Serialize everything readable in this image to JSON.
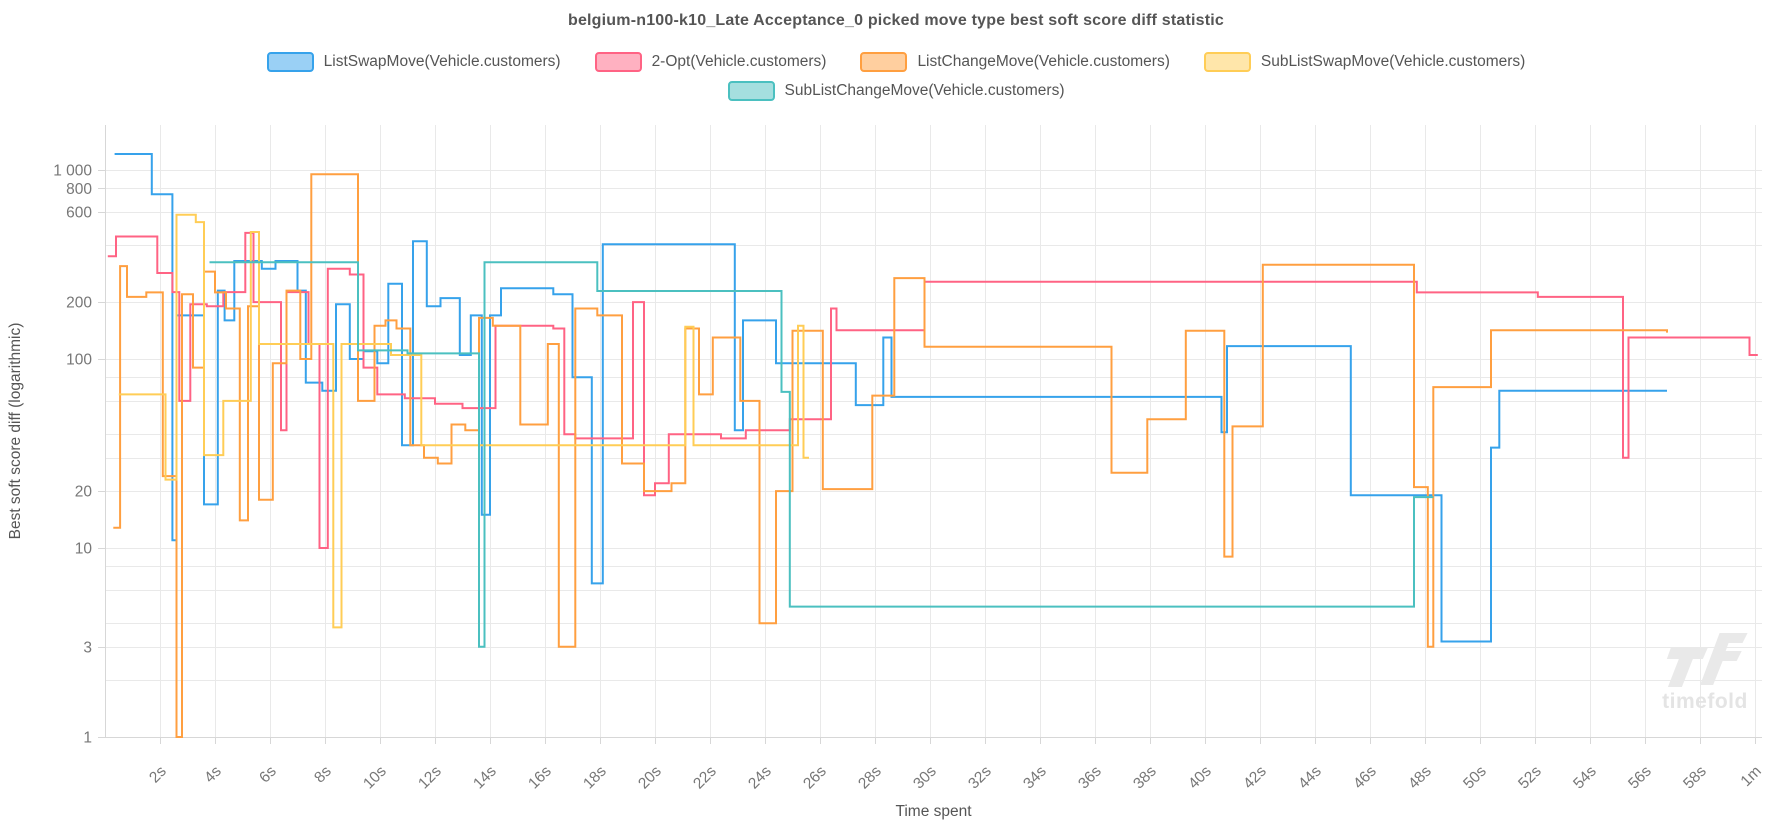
{
  "title": "belgium-n100-k10_Late Acceptance_0 picked move type best soft score diff statistic",
  "axes": {
    "y_label": "Best soft score diff (logarithmic)",
    "x_label": "Time spent",
    "y_tick_labels": [
      {
        "label": "1 000",
        "value": 1000
      },
      {
        "label": "800",
        "value": 800
      },
      {
        "label": "600",
        "value": 600
      },
      {
        "label": "200",
        "value": 200
      },
      {
        "label": "100",
        "value": 100
      },
      {
        "label": "20",
        "value": 20
      },
      {
        "label": "10",
        "value": 10
      },
      {
        "label": "3",
        "value": 3
      },
      {
        "label": "1",
        "value": 1
      }
    ],
    "y_gridlines": [
      1,
      2,
      3,
      4,
      6,
      8,
      10,
      20,
      30,
      40,
      60,
      80,
      100,
      200,
      400,
      600,
      800,
      1000
    ],
    "x_ticks": [
      {
        "label": "2s",
        "value": 2
      },
      {
        "label": "4s",
        "value": 4
      },
      {
        "label": "6s",
        "value": 6
      },
      {
        "label": "8s",
        "value": 8
      },
      {
        "label": "10s",
        "value": 10
      },
      {
        "label": "12s",
        "value": 12
      },
      {
        "label": "14s",
        "value": 14
      },
      {
        "label": "16s",
        "value": 16
      },
      {
        "label": "18s",
        "value": 18
      },
      {
        "label": "20s",
        "value": 20
      },
      {
        "label": "22s",
        "value": 22
      },
      {
        "label": "24s",
        "value": 24
      },
      {
        "label": "26s",
        "value": 26
      },
      {
        "label": "28s",
        "value": 28
      },
      {
        "label": "30s",
        "value": 30
      },
      {
        "label": "32s",
        "value": 32
      },
      {
        "label": "34s",
        "value": 34
      },
      {
        "label": "36s",
        "value": 36
      },
      {
        "label": "38s",
        "value": 38
      },
      {
        "label": "40s",
        "value": 40
      },
      {
        "label": "42s",
        "value": 42
      },
      {
        "label": "44s",
        "value": 44
      },
      {
        "label": "46s",
        "value": 46
      },
      {
        "label": "48s",
        "value": 48
      },
      {
        "label": "50s",
        "value": 50
      },
      {
        "label": "52s",
        "value": 52
      },
      {
        "label": "54s",
        "value": 54
      },
      {
        "label": "56s",
        "value": 56
      },
      {
        "label": "58s",
        "value": 58
      },
      {
        "label": "1m",
        "value": 60
      }
    ]
  },
  "watermark": {
    "logo": "tf",
    "text": "timefold"
  },
  "chart_data": {
    "type": "line",
    "stepped": true,
    "x_axis_unit": "seconds",
    "y_scale": "logarithmic",
    "y_range": [
      1,
      1750
    ],
    "x_range": [
      0,
      60.6
    ],
    "grid": true,
    "legend_position": "top",
    "title": "belgium-n100-k10_Late Acceptance_0 picked move type best soft score diff statistic",
    "series": [
      {
        "name": "ListSwapMove(Vehicle.customers)",
        "color": "#36A2EB",
        "points": [
          [
            0.35,
            1215
          ],
          [
            1.7,
            744
          ],
          [
            2.45,
            11
          ],
          [
            2.6,
            170
          ],
          [
            3.6,
            17
          ],
          [
            4.1,
            230
          ],
          [
            4.35,
            160
          ],
          [
            4.7,
            330
          ],
          [
            5.7,
            300
          ],
          [
            6.2,
            330
          ],
          [
            7.0,
            230
          ],
          [
            7.3,
            75
          ],
          [
            7.9,
            68
          ],
          [
            8.4,
            195
          ],
          [
            8.9,
            100
          ],
          [
            9.4,
            110
          ],
          [
            9.9,
            95
          ],
          [
            10.3,
            250
          ],
          [
            10.8,
            35
          ],
          [
            11.2,
            420
          ],
          [
            11.7,
            190
          ],
          [
            12.2,
            210
          ],
          [
            12.9,
            105
          ],
          [
            13.3,
            170
          ],
          [
            13.7,
            15
          ],
          [
            14.0,
            170
          ],
          [
            14.4,
            237
          ],
          [
            16.3,
            220
          ],
          [
            17.0,
            80
          ],
          [
            17.7,
            6.5
          ],
          [
            18.1,
            405
          ],
          [
            22.9,
            42
          ],
          [
            23.2,
            160
          ],
          [
            24.4,
            95
          ],
          [
            27.3,
            57
          ],
          [
            28.3,
            130
          ],
          [
            28.6,
            63
          ],
          [
            40.6,
            41
          ],
          [
            40.8,
            117
          ],
          [
            45.3,
            19
          ],
          [
            48.6,
            3.2
          ],
          [
            50.4,
            34
          ],
          [
            50.7,
            68
          ],
          [
            56.8,
            68
          ]
        ]
      },
      {
        "name": "2-Opt(Vehicle.customers)",
        "color": "#FF6384",
        "points": [
          [
            0.1,
            350
          ],
          [
            0.4,
            445
          ],
          [
            1.9,
            285
          ],
          [
            2.45,
            226
          ],
          [
            2.7,
            60
          ],
          [
            3.1,
            195
          ],
          [
            3.7,
            190
          ],
          [
            4.3,
            226
          ],
          [
            5.1,
            465
          ],
          [
            5.4,
            200
          ],
          [
            6.4,
            42
          ],
          [
            6.6,
            226
          ],
          [
            7.4,
            120
          ],
          [
            7.8,
            10
          ],
          [
            8.1,
            300
          ],
          [
            8.9,
            280
          ],
          [
            9.4,
            90
          ],
          [
            9.9,
            65
          ],
          [
            10.9,
            62
          ],
          [
            12.0,
            58
          ],
          [
            13.0,
            55
          ],
          [
            14.2,
            150
          ],
          [
            16.3,
            145
          ],
          [
            16.7,
            40
          ],
          [
            17.1,
            38
          ],
          [
            19.2,
            200
          ],
          [
            19.6,
            19
          ],
          [
            20.0,
            22
          ],
          [
            20.5,
            40
          ],
          [
            22.4,
            38
          ],
          [
            23.3,
            42
          ],
          [
            24.9,
            48
          ],
          [
            26.4,
            185
          ],
          [
            26.6,
            142
          ],
          [
            29.8,
            256
          ],
          [
            47.7,
            225
          ],
          [
            52.1,
            213
          ],
          [
            55.2,
            30
          ],
          [
            55.4,
            130
          ],
          [
            59.8,
            105
          ],
          [
            60.1,
            105
          ]
        ]
      },
      {
        "name": "ListChangeMove(Vehicle.customers)",
        "color": "#FF9F40",
        "points": [
          [
            0.3,
            12.8
          ],
          [
            0.55,
            310
          ],
          [
            0.8,
            213
          ],
          [
            1.5,
            225
          ],
          [
            2.1,
            24
          ],
          [
            2.6,
            1
          ],
          [
            2.8,
            220
          ],
          [
            3.2,
            90
          ],
          [
            3.6,
            290
          ],
          [
            4.0,
            225
          ],
          [
            4.4,
            185
          ],
          [
            4.9,
            14
          ],
          [
            5.2,
            190
          ],
          [
            5.6,
            18
          ],
          [
            6.1,
            95
          ],
          [
            6.6,
            230
          ],
          [
            7.1,
            100
          ],
          [
            7.5,
            950
          ],
          [
            9.2,
            60
          ],
          [
            9.8,
            150
          ],
          [
            10.2,
            160
          ],
          [
            10.6,
            145
          ],
          [
            11.1,
            35
          ],
          [
            11.6,
            30
          ],
          [
            12.1,
            28
          ],
          [
            12.6,
            45
          ],
          [
            13.1,
            42
          ],
          [
            13.6,
            165
          ],
          [
            14.1,
            150
          ],
          [
            15.1,
            45
          ],
          [
            16.1,
            120
          ],
          [
            16.5,
            3
          ],
          [
            17.1,
            185
          ],
          [
            17.9,
            170
          ],
          [
            18.8,
            28
          ],
          [
            19.6,
            20
          ],
          [
            20.6,
            22
          ],
          [
            21.1,
            145
          ],
          [
            21.6,
            65
          ],
          [
            22.1,
            130
          ],
          [
            23.1,
            60
          ],
          [
            23.8,
            4
          ],
          [
            24.4,
            20
          ],
          [
            25.0,
            141
          ],
          [
            26.1,
            20.5
          ],
          [
            27.9,
            64
          ],
          [
            28.7,
            268
          ],
          [
            29.8,
            116
          ],
          [
            36.6,
            25
          ],
          [
            37.9,
            48
          ],
          [
            39.3,
            141
          ],
          [
            40.7,
            9
          ],
          [
            41.0,
            44
          ],
          [
            42.1,
            315
          ],
          [
            47.6,
            21
          ],
          [
            48.1,
            3
          ],
          [
            48.3,
            71
          ],
          [
            50.4,
            142
          ],
          [
            56.8,
            138
          ]
        ]
      },
      {
        "name": "SubListSwapMove(Vehicle.customers)",
        "color": "#FFCD56",
        "points": [
          [
            0.5,
            65
          ],
          [
            2.2,
            23
          ],
          [
            2.6,
            580
          ],
          [
            3.3,
            530
          ],
          [
            3.6,
            31
          ],
          [
            4.3,
            60
          ],
          [
            5.3,
            470
          ],
          [
            5.6,
            120
          ],
          [
            8.3,
            3.8
          ],
          [
            8.6,
            120
          ],
          [
            10.4,
            105
          ],
          [
            11.5,
            35
          ],
          [
            21.1,
            148
          ],
          [
            21.4,
            35
          ],
          [
            25.2,
            150
          ],
          [
            25.4,
            30
          ],
          [
            25.6,
            30
          ]
        ]
      },
      {
        "name": "SubListChangeMove(Vehicle.customers)",
        "color": "#4BC0C0",
        "points": [
          [
            3.8,
            325
          ],
          [
            9.2,
            111
          ],
          [
            11.0,
            107
          ],
          [
            13.6,
            3
          ],
          [
            13.8,
            325
          ],
          [
            17.9,
            229
          ],
          [
            24.6,
            67
          ],
          [
            24.9,
            4.9
          ],
          [
            47.6,
            18.6
          ],
          [
            48.3,
            18.6
          ]
        ]
      }
    ]
  }
}
